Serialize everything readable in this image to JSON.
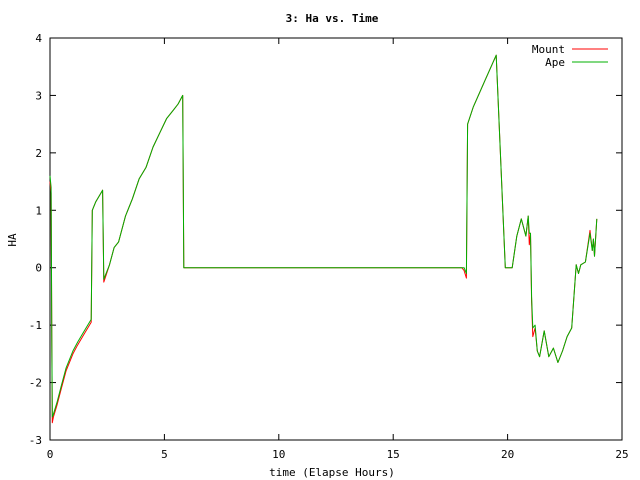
{
  "chart_data": {
    "type": "line",
    "title": "3: Ha vs. Time",
    "xlabel": "time (Elapse Hours)",
    "ylabel": "HA",
    "xlim": [
      0,
      25
    ],
    "ylim": [
      -3,
      4
    ],
    "xticks": [
      0,
      5,
      10,
      15,
      20,
      25
    ],
    "yticks": [
      -3,
      -2,
      -1,
      0,
      1,
      2,
      3,
      4
    ],
    "grid": false,
    "legend_position": "top-right",
    "series": [
      {
        "name": "Mount",
        "color": "#ff0000",
        "x": [
          0,
          0.05,
          0.08,
          0.1,
          0.15,
          0.3,
          0.5,
          0.7,
          1.0,
          1.2,
          1.5,
          1.8,
          1.85,
          2.0,
          2.3,
          2.35,
          2.6,
          2.8,
          3.0,
          3.3,
          3.6,
          3.9,
          4.2,
          4.5,
          4.8,
          5.1,
          5.4,
          5.6,
          5.8,
          5.85,
          18.0,
          18.1,
          18.2,
          18.25,
          18.5,
          19.0,
          19.5,
          19.9,
          20.2,
          20.4,
          20.6,
          20.8,
          20.9,
          20.95,
          21.0,
          21.05,
          21.1,
          21.2,
          21.3,
          21.4,
          21.6,
          21.8,
          22.0,
          22.2,
          22.4,
          22.6,
          22.8,
          23.0,
          23.1,
          23.2,
          23.4,
          23.6,
          23.7,
          23.75,
          23.8,
          23.9
        ],
        "y": [
          1.5,
          1.3,
          -1.3,
          -2.7,
          -2.6,
          -2.4,
          -2.1,
          -1.8,
          -1.5,
          -1.35,
          -1.15,
          -0.95,
          1.0,
          1.15,
          1.35,
          -0.25,
          0.05,
          0.35,
          0.45,
          0.9,
          1.2,
          1.55,
          1.75,
          2.1,
          2.35,
          2.6,
          2.75,
          2.85,
          3.0,
          0.0,
          0.0,
          -0.05,
          -0.18,
          2.5,
          2.8,
          3.25,
          3.7,
          0.0,
          0.0,
          0.55,
          0.85,
          0.55,
          0.9,
          0.4,
          0.6,
          -0.6,
          -1.2,
          -1.05,
          -1.45,
          -1.55,
          -1.1,
          -1.55,
          -1.4,
          -1.65,
          -1.45,
          -1.2,
          -1.05,
          0.05,
          -0.1,
          0.05,
          0.1,
          0.65,
          0.3,
          0.5,
          0.2,
          0.85
        ]
      },
      {
        "name": "Ape",
        "color": "#00b000",
        "x": [
          0,
          0.05,
          0.08,
          0.1,
          0.15,
          0.3,
          0.5,
          0.7,
          1.0,
          1.2,
          1.5,
          1.8,
          1.85,
          2.0,
          2.3,
          2.35,
          2.6,
          2.8,
          3.0,
          3.3,
          3.6,
          3.9,
          4.2,
          4.5,
          4.8,
          5.1,
          5.4,
          5.6,
          5.8,
          5.85,
          18.0,
          18.1,
          18.2,
          18.25,
          18.5,
          19.0,
          19.5,
          19.9,
          20.2,
          20.4,
          20.6,
          20.8,
          20.9,
          20.95,
          21.0,
          21.05,
          21.1,
          21.2,
          21.3,
          21.4,
          21.6,
          21.8,
          22.0,
          22.2,
          22.4,
          22.6,
          22.8,
          23.0,
          23.1,
          23.2,
          23.4,
          23.6,
          23.7,
          23.75,
          23.8,
          23.9
        ],
        "y": [
          1.6,
          1.4,
          -1.2,
          -2.6,
          -2.55,
          -2.35,
          -2.05,
          -1.75,
          -1.45,
          -1.3,
          -1.1,
          -0.9,
          1.0,
          1.15,
          1.35,
          -0.2,
          0.05,
          0.35,
          0.45,
          0.9,
          1.2,
          1.55,
          1.75,
          2.1,
          2.35,
          2.6,
          2.75,
          2.85,
          3.0,
          0.0,
          0.0,
          0.0,
          -0.1,
          2.5,
          2.8,
          3.25,
          3.7,
          0.0,
          0.0,
          0.55,
          0.85,
          0.55,
          0.9,
          0.6,
          0.6,
          -0.5,
          -1.05,
          -1.0,
          -1.45,
          -1.55,
          -1.1,
          -1.55,
          -1.4,
          -1.65,
          -1.45,
          -1.2,
          -1.05,
          0.05,
          -0.1,
          0.05,
          0.1,
          0.6,
          0.3,
          0.5,
          0.2,
          0.85
        ]
      }
    ]
  }
}
